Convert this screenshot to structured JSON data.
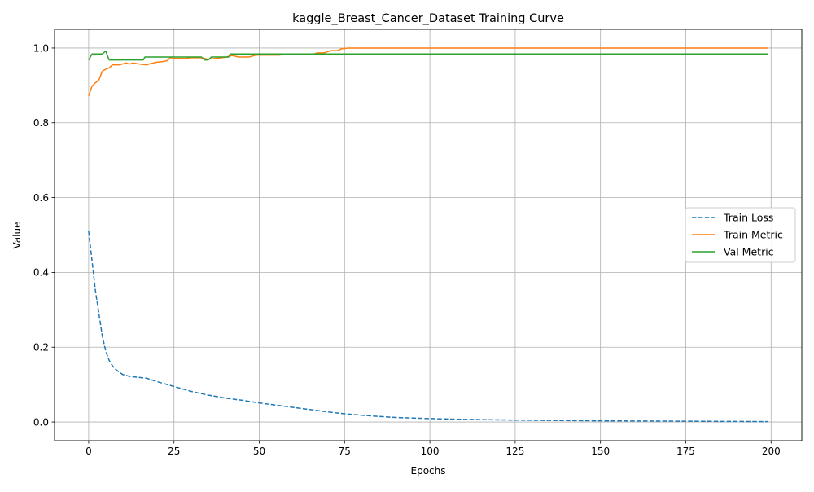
{
  "chart_data": {
    "type": "line",
    "title": "kaggle_Breast_Cancer_Dataset Training Curve",
    "xlabel": "Epochs",
    "ylabel": "Value",
    "xlim": [
      -10,
      209
    ],
    "ylim": [
      -0.05,
      1.05
    ],
    "xticks": [
      0,
      25,
      50,
      75,
      100,
      125,
      150,
      175,
      200
    ],
    "yticks": [
      0.0,
      0.2,
      0.4,
      0.6,
      0.8,
      1.0
    ],
    "xtick_labels": [
      "0",
      "25",
      "50",
      "75",
      "100",
      "125",
      "150",
      "175",
      "200"
    ],
    "ytick_labels": [
      "0.0",
      "0.2",
      "0.4",
      "0.6",
      "0.8",
      "1.0"
    ],
    "grid": true,
    "legend_position": "center-right",
    "series": [
      {
        "name": "Train Loss",
        "color": "#1f77b4",
        "style": "dashed",
        "points": [
          [
            0,
            0.51
          ],
          [
            1,
            0.43
          ],
          [
            2,
            0.35
          ],
          [
            3,
            0.29
          ],
          [
            4,
            0.23
          ],
          [
            5,
            0.19
          ],
          [
            6,
            0.165
          ],
          [
            7,
            0.15
          ],
          [
            8,
            0.14
          ],
          [
            9,
            0.133
          ],
          [
            10,
            0.127
          ],
          [
            12,
            0.122
          ],
          [
            14,
            0.12
          ],
          [
            17,
            0.117
          ],
          [
            20,
            0.108
          ],
          [
            25,
            0.095
          ],
          [
            30,
            0.082
          ],
          [
            35,
            0.072
          ],
          [
            40,
            0.064
          ],
          [
            45,
            0.058
          ],
          [
            50,
            0.051
          ],
          [
            55,
            0.045
          ],
          [
            60,
            0.039
          ],
          [
            65,
            0.033
          ],
          [
            70,
            0.027
          ],
          [
            75,
            0.022
          ],
          [
            80,
            0.018
          ],
          [
            90,
            0.012
          ],
          [
            100,
            0.009
          ],
          [
            110,
            0.007
          ],
          [
            125,
            0.005
          ],
          [
            150,
            0.003
          ],
          [
            175,
            0.002
          ],
          [
            199,
            0.001
          ]
        ]
      },
      {
        "name": "Train Metric",
        "color": "#ff7f0e",
        "style": "solid",
        "points": [
          [
            0,
            0.872
          ],
          [
            1,
            0.898
          ],
          [
            2,
            0.907
          ],
          [
            3,
            0.914
          ],
          [
            4,
            0.938
          ],
          [
            5,
            0.943
          ],
          [
            6,
            0.947
          ],
          [
            7,
            0.955
          ],
          [
            9,
            0.955
          ],
          [
            11,
            0.96
          ],
          [
            12,
            0.957
          ],
          [
            13,
            0.96
          ],
          [
            15,
            0.957
          ],
          [
            17,
            0.955
          ],
          [
            18,
            0.958
          ],
          [
            20,
            0.962
          ],
          [
            22,
            0.964
          ],
          [
            23,
            0.966
          ],
          [
            24,
            0.975
          ],
          [
            25,
            0.972
          ],
          [
            28,
            0.972
          ],
          [
            30,
            0.974
          ],
          [
            33,
            0.974
          ],
          [
            35,
            0.97
          ],
          [
            37,
            0.972
          ],
          [
            40,
            0.975
          ],
          [
            42,
            0.98
          ],
          [
            44,
            0.976
          ],
          [
            47,
            0.976
          ],
          [
            49,
            0.981
          ],
          [
            56,
            0.981
          ],
          [
            57,
            0.984
          ],
          [
            66,
            0.984
          ],
          [
            67,
            0.987
          ],
          [
            69,
            0.987
          ],
          [
            71,
            0.993
          ],
          [
            73,
            0.993
          ],
          [
            74,
            0.998
          ],
          [
            76,
            1.0
          ],
          [
            199,
            1.0
          ]
        ]
      },
      {
        "name": "Val Metric",
        "color": "#2ca02c",
        "style": "solid",
        "points": [
          [
            0,
            0.968
          ],
          [
            1,
            0.984
          ],
          [
            4,
            0.984
          ],
          [
            5,
            0.992
          ],
          [
            6,
            0.968
          ],
          [
            16,
            0.968
          ],
          [
            16.5,
            0.976
          ],
          [
            33,
            0.976
          ],
          [
            34,
            0.968
          ],
          [
            35,
            0.968
          ],
          [
            36,
            0.976
          ],
          [
            41,
            0.976
          ],
          [
            41.5,
            0.984
          ],
          [
            199,
            0.984
          ]
        ]
      }
    ]
  }
}
